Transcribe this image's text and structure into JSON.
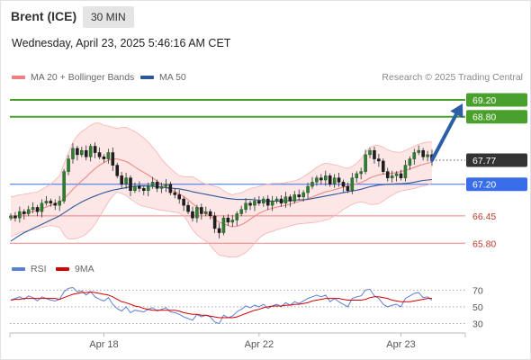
{
  "header": {
    "symbol": "Brent (ICE)",
    "timeframe": "30 MIN",
    "datetime": "Wednesday, April 23, 2025 5:46:16 AM CET"
  },
  "legend": {
    "bollinger_label": "MA 20 + Bollinger Bands",
    "ma50_label": "MA 50",
    "credit": "Research © 2025 Trading Central",
    "rsi_label": "RSI",
    "rsi_ma_label": "9MA"
  },
  "colors": {
    "bollinger": "#f08080",
    "band_fill": "#fde2e2",
    "ma50": "#2b5797",
    "target": "#4aa02c",
    "pivot": "#3a6ee8",
    "support": "#f08080",
    "last": "#333333",
    "candle": "#2f7d32",
    "rsi": "#5b7fd6",
    "rsi_ma": "#d40000",
    "arrow": "#2b5ea7"
  },
  "chart_data": {
    "type": "candlestick",
    "ylim": [
      65.55,
      69.52
    ],
    "x_ticks": [
      {
        "label": "Apr 18",
        "index": 21
      },
      {
        "label": "Apr 22",
        "index": 56
      },
      {
        "label": "Apr 23",
        "index": 88
      }
    ],
    "levels": [
      {
        "label": "69.20",
        "value": 69.2,
        "kind": "target"
      },
      {
        "label": "68.80",
        "value": 68.8,
        "kind": "target"
      },
      {
        "label": "67.77",
        "value": 67.77,
        "kind": "last"
      },
      {
        "label": "67.20",
        "value": 67.2,
        "kind": "pivot"
      },
      {
        "label": "66.45",
        "value": 66.45,
        "kind": "support"
      },
      {
        "label": "65.80",
        "value": 65.8,
        "kind": "support"
      }
    ],
    "closes": [
      66.45,
      66.4,
      66.55,
      66.5,
      66.6,
      66.65,
      66.55,
      66.75,
      66.8,
      66.75,
      66.7,
      66.8,
      67.5,
      67.8,
      68.05,
      67.9,
      68.0,
      67.85,
      68.1,
      67.95,
      67.85,
      67.8,
      67.95,
      67.65,
      67.4,
      67.2,
      67.35,
      67.05,
      67.15,
      67.1,
      67.05,
      67.15,
      67.25,
      67.1,
      67.15,
      67.2,
      67.0,
      66.95,
      66.85,
      66.7,
      66.55,
      66.4,
      66.65,
      66.5,
      66.55,
      66.45,
      66.15,
      66.05,
      66.4,
      66.3,
      66.35,
      66.5,
      66.6,
      66.75,
      66.7,
      66.8,
      66.75,
      66.85,
      66.7,
      66.8,
      66.85,
      66.75,
      66.9,
      66.8,
      66.95,
      66.9,
      67.0,
      67.15,
      67.25,
      67.35,
      67.3,
      67.4,
      67.2,
      67.35,
      67.25,
      67.15,
      67.05,
      67.35,
      67.45,
      67.5,
      67.9,
      68.0,
      67.8,
      67.75,
      67.5,
      67.35,
      67.4,
      67.45,
      67.35,
      67.65,
      67.8,
      67.95,
      68.0,
      67.85,
      67.9,
      67.77
    ],
    "ma20": [
      66.38,
      66.42,
      66.48,
      66.5,
      66.53,
      66.56,
      66.58,
      66.62,
      66.66,
      66.7,
      66.73,
      66.77,
      66.86,
      66.96,
      67.08,
      67.18,
      67.28,
      67.37,
      67.48,
      67.57,
      67.65,
      67.71,
      67.77,
      67.8,
      67.8,
      67.77,
      67.74,
      67.68,
      67.61,
      67.54,
      67.48,
      67.42,
      67.35,
      67.27,
      67.2,
      67.13,
      67.07,
      67.02,
      66.97,
      66.91,
      66.83,
      66.74,
      66.66,
      66.58,
      66.51,
      66.44,
      66.37,
      66.3,
      66.26,
      66.22,
      66.19,
      66.2,
      66.24,
      66.3,
      66.37,
      66.44,
      66.51,
      66.56,
      66.6,
      66.63,
      66.66,
      66.68,
      66.7,
      66.73,
      66.76,
      66.79,
      66.82,
      66.86,
      66.9,
      66.94,
      66.98,
      67.02,
      67.04,
      67.07,
      67.1,
      67.13,
      67.15,
      67.18,
      67.21,
      67.24,
      67.29,
      67.35,
      67.39,
      67.42,
      67.44,
      67.45,
      67.46,
      67.48,
      67.5,
      67.53,
      67.56,
      67.6,
      67.64,
      67.67,
      67.7,
      67.72
    ],
    "bb_upper": [
      66.9,
      66.92,
      66.95,
      66.96,
      66.98,
      67.0,
      67.02,
      67.08,
      67.14,
      67.2,
      67.3,
      67.4,
      67.68,
      67.95,
      68.2,
      68.35,
      68.45,
      68.52,
      68.6,
      68.65,
      68.65,
      68.6,
      68.58,
      68.55,
      68.52,
      68.55,
      68.55,
      68.5,
      68.45,
      68.38,
      68.3,
      68.2,
      68.08,
      67.95,
      67.8,
      67.68,
      67.58,
      67.48,
      67.4,
      67.38,
      67.38,
      67.38,
      67.32,
      67.25,
      67.2,
      67.18,
      67.15,
      67.12,
      67.05,
      66.98,
      66.95,
      66.98,
      67.0,
      67.05,
      67.1,
      67.12,
      67.15,
      67.18,
      67.2,
      67.22,
      67.22,
      67.22,
      67.24,
      67.26,
      67.28,
      67.32,
      67.38,
      67.45,
      67.52,
      67.6,
      67.66,
      67.7,
      67.68,
      67.66,
      67.64,
      67.6,
      67.58,
      67.62,
      67.7,
      67.8,
      67.95,
      68.08,
      68.12,
      68.12,
      68.08,
      68.02,
      67.98,
      67.96,
      67.96,
      68.0,
      68.05,
      68.1,
      68.15,
      68.18,
      68.2,
      68.2
    ],
    "bb_lower": [
      65.95,
      66.0,
      66.05,
      66.08,
      66.1,
      66.12,
      66.14,
      66.18,
      66.2,
      66.22,
      66.2,
      66.18,
      66.0,
      65.9,
      65.9,
      65.92,
      65.96,
      66.02,
      66.12,
      66.25,
      66.42,
      66.6,
      66.78,
      66.92,
      67.02,
      66.98,
      66.93,
      66.85,
      66.78,
      66.71,
      66.67,
      66.65,
      66.63,
      66.6,
      66.58,
      66.57,
      66.55,
      66.54,
      66.52,
      66.45,
      66.3,
      66.12,
      66.0,
      65.92,
      65.85,
      65.75,
      65.62,
      65.52,
      65.5,
      65.48,
      65.47,
      65.48,
      65.52,
      65.58,
      65.68,
      65.8,
      65.92,
      66.0,
      66.05,
      66.08,
      66.12,
      66.15,
      66.18,
      66.21,
      66.24,
      66.26,
      66.27,
      66.28,
      66.29,
      66.3,
      66.32,
      66.35,
      66.38,
      66.45,
      66.52,
      66.6,
      66.66,
      66.72,
      66.76,
      66.78,
      66.76,
      66.72,
      66.72,
      66.74,
      66.8,
      66.88,
      66.94,
      67.0,
      67.04,
      67.06,
      67.08,
      67.1,
      67.13,
      67.16,
      67.18,
      67.22
    ],
    "ma50": [
      65.85,
      65.92,
      65.99,
      66.05,
      66.1,
      66.15,
      66.2,
      66.25,
      66.3,
      66.35,
      66.4,
      66.45,
      66.52,
      66.59,
      66.66,
      66.72,
      66.78,
      66.83,
      66.88,
      66.92,
      66.96,
      67.0,
      67.03,
      67.06,
      67.08,
      67.1,
      67.12,
      67.14,
      67.15,
      67.16,
      67.16,
      67.16,
      67.15,
      67.14,
      67.13,
      67.12,
      67.11,
      67.1,
      67.09,
      67.07,
      67.05,
      67.02,
      67.0,
      66.98,
      66.96,
      66.94,
      66.92,
      66.9,
      66.88,
      66.86,
      66.85,
      66.84,
      66.84,
      66.84,
      66.84,
      66.83,
      66.82,
      66.81,
      66.8,
      66.8,
      66.8,
      66.8,
      66.81,
      66.81,
      66.82,
      66.83,
      66.83,
      66.84,
      66.86,
      66.88,
      66.9,
      66.92,
      66.94,
      66.96,
      66.98,
      67.0,
      67.02,
      67.04,
      67.06,
      67.08,
      67.11,
      67.14,
      67.16,
      67.18,
      67.19,
      67.2,
      67.2,
      67.21,
      67.21,
      67.22,
      67.23,
      67.25,
      67.27,
      67.29,
      67.3,
      67.31
    ],
    "rsi_ylim": [
      22,
      80
    ],
    "rsi_levels": [
      70,
      50,
      30
    ],
    "rsi": [
      58,
      60,
      62,
      59,
      63,
      61,
      57,
      62,
      60,
      58,
      57,
      59,
      68,
      72,
      73,
      68,
      69,
      64,
      68,
      62,
      59,
      57,
      61,
      53,
      48,
      45,
      50,
      43,
      46,
      45,
      44,
      47,
      49,
      45,
      47,
      49,
      44,
      43,
      41,
      38,
      36,
      34,
      41,
      38,
      40,
      38,
      32,
      30,
      40,
      37,
      39,
      44,
      47,
      51,
      49,
      52,
      50,
      53,
      48,
      51,
      53,
      50,
      55,
      52,
      56,
      54,
      57,
      60,
      62,
      64,
      62,
      64,
      56,
      60,
      56,
      53,
      50,
      60,
      62,
      63,
      70,
      71,
      63,
      60,
      53,
      50,
      52,
      53,
      50,
      60,
      63,
      66,
      67,
      61,
      62,
      58
    ],
    "rsi_ma": [
      58,
      59,
      59,
      60,
      60,
      60,
      60,
      60,
      60,
      60,
      60,
      59,
      61,
      63,
      65,
      66,
      67,
      67,
      68,
      67,
      66,
      65,
      64,
      62,
      59,
      56,
      55,
      53,
      51,
      50,
      48,
      47,
      46,
      46,
      46,
      46,
      46,
      46,
      45,
      43,
      42,
      41,
      41,
      40,
      40,
      39,
      38,
      37,
      37,
      37,
      37,
      38,
      40,
      42,
      44,
      46,
      47,
      49,
      50,
      51,
      51,
      51,
      52,
      52,
      53,
      53,
      54,
      55,
      57,
      58,
      59,
      60,
      60,
      60,
      60,
      59,
      58,
      58,
      58,
      58,
      59,
      61,
      62,
      62,
      61,
      60,
      58,
      57,
      56,
      56,
      56,
      57,
      58,
      59,
      60,
      60
    ]
  }
}
